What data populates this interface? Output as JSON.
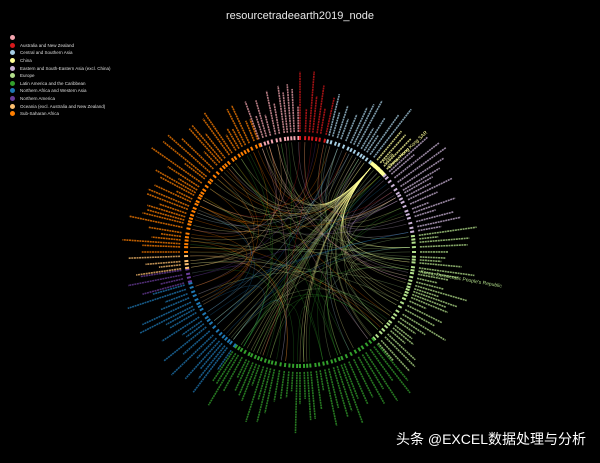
{
  "title": "resourcetradeearth2019_node",
  "legend": [
    {
      "label": "",
      "color": "#f4a6b0"
    },
    {
      "label": "Australia and New Zealand",
      "color": "#d7191c"
    },
    {
      "label": "Central and Southern Asia",
      "color": "#a6cee3"
    },
    {
      "label": "China",
      "color": "#ffff99"
    },
    {
      "label": "Eastern and South-Eastern Asia (excl. China)",
      "color": "#cab2d6"
    },
    {
      "label": "Europe",
      "color": "#b2df8a"
    },
    {
      "label": "Latin America and the Caribbean",
      "color": "#33a02c"
    },
    {
      "label": "Northern Africa and Western Asia",
      "color": "#1f78b4"
    },
    {
      "label": "Northern America",
      "color": "#6a3d9a"
    },
    {
      "label": "Oceania (excl. Australia and New Zealand)",
      "color": "#fdbf6f"
    },
    {
      "label": "Sub-Saharan Africa",
      "color": "#ff7f00"
    }
  ],
  "visible_node_labels": [
    "China",
    "China, Hong Kong SAR",
    "Korea, Democratic People's Republic"
  ],
  "watermark": "头条 @EXCEL数据处理与分析"
}
